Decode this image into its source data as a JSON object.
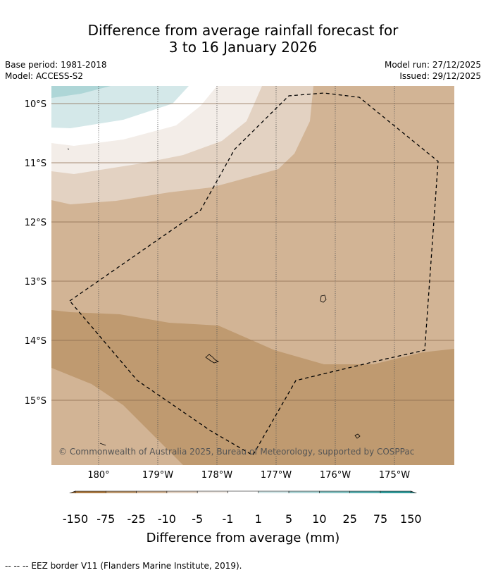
{
  "header": {
    "title_line1": "Difference from average rainfall forecast for",
    "title_line2": "3 to 16 January 2026",
    "base_period": "Base period: 1981-2018",
    "model": "Model: ACCESS-S2",
    "model_run": "Model run: 27/12/2025",
    "issued": "Issued: 29/12/2025"
  },
  "map": {
    "lat_labels": [
      "10°S",
      "11°S",
      "12°S",
      "13°S",
      "14°S",
      "15°S"
    ],
    "lon_labels": [
      "180°",
      "179°W",
      "178°W",
      "177°W",
      "176°W",
      "175°W"
    ],
    "copyright": "© Commonwealth of Australia 2025, Bureau of Meteorology, supported by COSPPac"
  },
  "colorbar": {
    "labels": [
      "-150",
      "-75",
      "-25",
      "-10",
      "-5",
      "-1",
      "1",
      "5",
      "10",
      "25",
      "75",
      "150"
    ],
    "colors": [
      "#ac7a43",
      "#bf9a70",
      "#d2b495",
      "#e3d2c2",
      "#f3ede8",
      "#ffffff",
      "#d4e8e9",
      "#aed6d7",
      "#85c3c3",
      "#5aafb0",
      "#319c9c"
    ],
    "under_color": "#996a37",
    "over_color": "#2a8585",
    "title": "Difference from average (mm)"
  },
  "footer": {
    "legend_line": "--  --  -- EEZ border V11 (Flanders Marine Institute, 2019)."
  }
}
